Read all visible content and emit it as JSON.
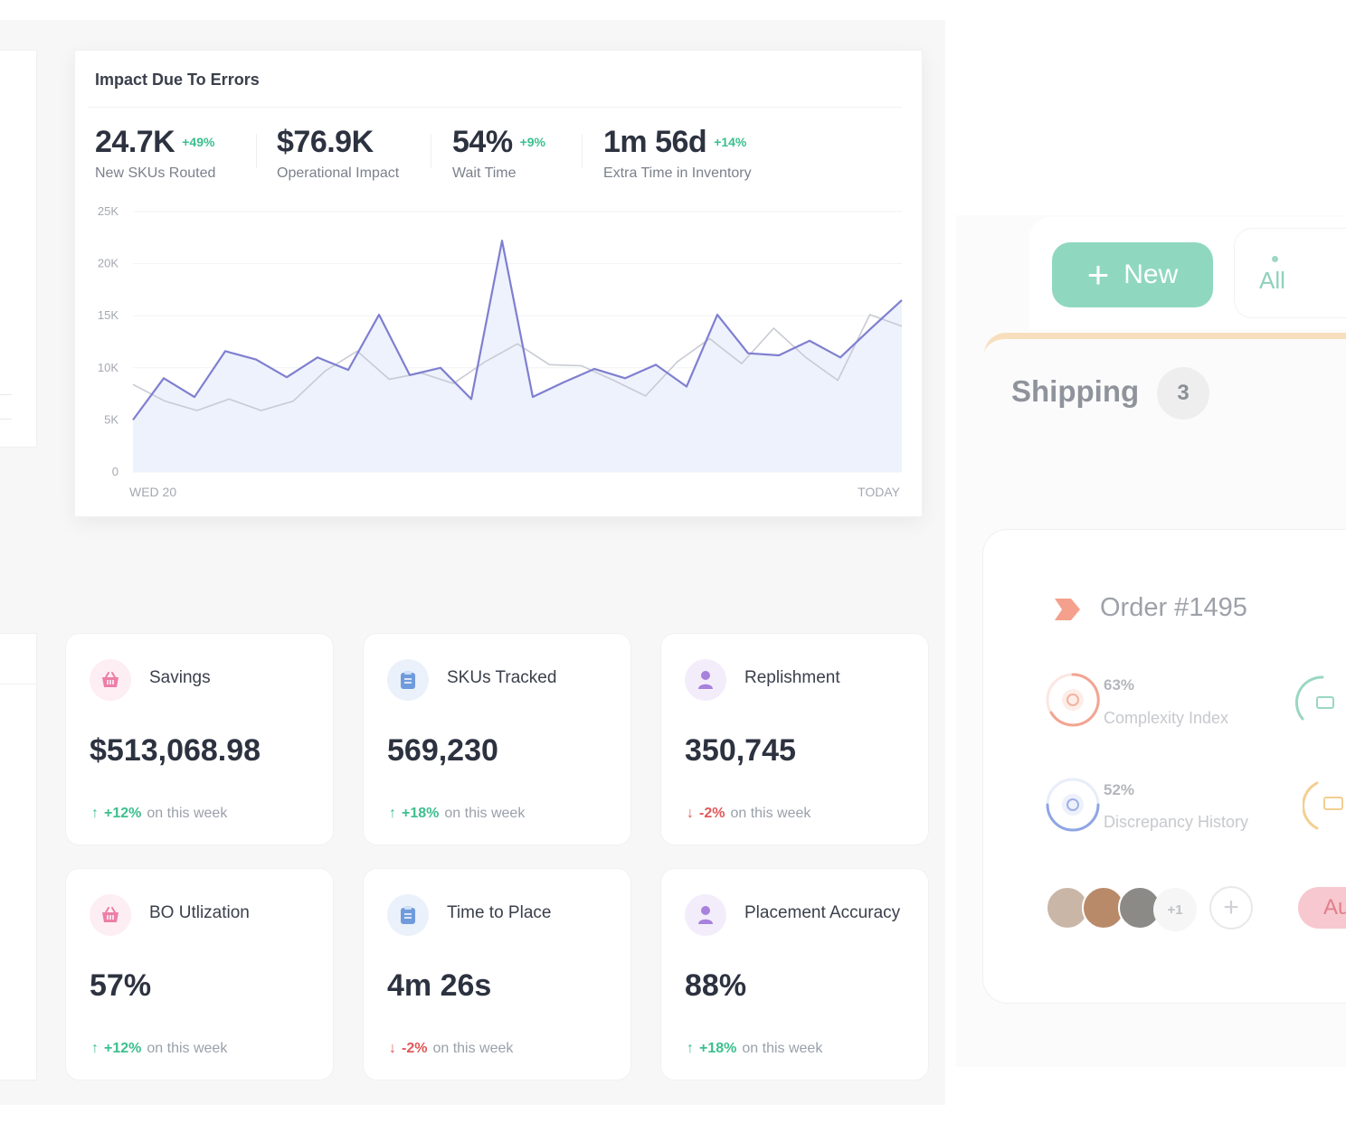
{
  "impact": {
    "title": "Impact Due To Errors",
    "stats": [
      {
        "value": "24.7K",
        "change": "+49%",
        "label": "New SKUs Routed"
      },
      {
        "value": "$76.9K",
        "change": "",
        "label": "Operational Impact"
      },
      {
        "value": "54%",
        "change": "+9%",
        "label": "Wait Time"
      },
      {
        "value": "1m 56d",
        "change": "+14%",
        "label": "Extra Time in Inventory"
      }
    ]
  },
  "chart_data": {
    "type": "line",
    "title": "",
    "xlabel": "",
    "ylabel": "",
    "x_tick_labels": [
      "WED 20",
      "TODAY"
    ],
    "y_ticks": [
      "0",
      "5K",
      "10K",
      "15K",
      "20K",
      "25K"
    ],
    "ylim": [
      0,
      25000
    ],
    "grid": true,
    "series": [
      {
        "name": "",
        "color": "#7f7fd0",
        "fill": "#eef2fc",
        "values": [
          5000,
          9000,
          7200,
          11600,
          10800,
          9100,
          11000,
          9800,
          15100,
          9300,
          10000,
          7000,
          22200,
          7200,
          8600,
          9900,
          9000,
          10300,
          8200,
          15100,
          11400,
          11200,
          12600,
          11000,
          13800,
          16500
        ]
      },
      {
        "name": "",
        "color": "#c8cbd3",
        "values": [
          8400,
          6800,
          5900,
          7000,
          5900,
          6800,
          9700,
          11600,
          8900,
          9500,
          8500,
          10600,
          12300,
          10300,
          10200,
          8800,
          7300,
          10600,
          12800,
          10400,
          13800,
          11000,
          8800,
          15100,
          14000
        ]
      }
    ]
  },
  "metrics": [
    {
      "title": "Savings",
      "value": "$513,068.98",
      "dir": "up",
      "change": "+12%",
      "suffix": "on this week",
      "icon": "basket-icon",
      "arrow": "↑"
    },
    {
      "title": "SKUs Tracked",
      "value": "569,230",
      "dir": "up",
      "change": "+18%",
      "suffix": "on this week",
      "icon": "clipboard-icon",
      "arrow": "↑"
    },
    {
      "title": "Replishment",
      "value": "350,745",
      "dir": "down",
      "change": "-2%",
      "suffix": "on this week",
      "icon": "user-icon",
      "arrow": "↓"
    },
    {
      "title": "BO Utlization",
      "value": "57%",
      "dir": "up",
      "change": "+12%",
      "suffix": "on this week",
      "icon": "basket-icon",
      "arrow": "↑"
    },
    {
      "title": "Time to Place",
      "value": "4m 26s",
      "dir": "down",
      "change": "-2%",
      "suffix": "on this week",
      "icon": "clipboard-icon",
      "arrow": "↓"
    },
    {
      "title": "Placement Accuracy",
      "value": "88%",
      "dir": "up",
      "change": "+18%",
      "suffix": "on this week",
      "icon": "user-icon",
      "arrow": "↑"
    }
  ],
  "right_panel": {
    "new_button": "New",
    "tab_all": "All",
    "column_title": "Shipping",
    "column_count": "3",
    "order_title": "Order #1495",
    "gauges": [
      {
        "pct": "63%",
        "label": "Complexity Index",
        "color": "#f2a592",
        "icon": "target-icon"
      },
      {
        "pct": "52%",
        "label": "Discrepancy History",
        "color": "#9bb0e8",
        "icon": "target-icon"
      }
    ],
    "more_assignees": "+1",
    "tag": "Au",
    "colors": {
      "accent_green": "#8fd8bf",
      "orange_bar": "#f7dfbd"
    }
  }
}
